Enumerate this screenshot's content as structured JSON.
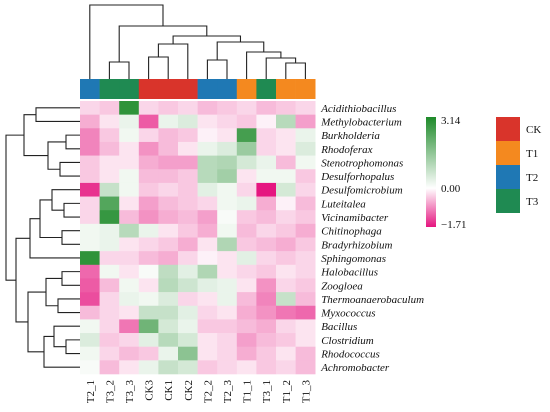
{
  "chart_data": {
    "type": "heatmap",
    "title": "",
    "columns": [
      "T2_1",
      "T3_2",
      "T3_3",
      "CK3",
      "CK1",
      "CK2",
      "T2_2",
      "T2_3",
      "T1_1",
      "T3_1",
      "T1_2",
      "T1_3"
    ],
    "column_groups": [
      "T2",
      "T3",
      "T3",
      "CK",
      "CK",
      "CK",
      "T2",
      "T2",
      "T1",
      "T3",
      "T1",
      "T1"
    ],
    "rows": [
      "Acidithiobacillus",
      "Methylobacterium",
      "Burkholderia",
      "Rhodoferax",
      "Stenotrophomonas",
      "Desulforhopalus",
      "Desulfomicrobium",
      "Luteitalea",
      "Vicinamibacter",
      "Chitinophaga",
      "Bradyrhizobium",
      "Sphingomonas",
      "Halobacillus",
      "Zoogloea",
      "Thermoanaerobaculum",
      "Myxococcus",
      "Bacillus",
      "Clostridium",
      "Rhodococcus",
      "Achromobacter"
    ],
    "values": [
      [
        -0.3,
        -0.4,
        2.9,
        -0.3,
        -0.4,
        -0.3,
        -0.5,
        -0.4,
        -0.3,
        -0.5,
        -0.4,
        -0.3
      ],
      [
        -0.6,
        -0.2,
        0.3,
        -1.2,
        0.3,
        0.5,
        -0.2,
        -0.3,
        -0.4,
        -0.1,
        1.0,
        -0.7
      ],
      [
        -0.9,
        -0.4,
        0.2,
        -0.3,
        -0.5,
        -0.4,
        -0.1,
        -0.2,
        2.6,
        -0.3,
        -0.2,
        0.3
      ],
      [
        -0.9,
        -0.5,
        -0.2,
        -0.8,
        -0.5,
        -0.2,
        0.3,
        0.5,
        1.4,
        -0.3,
        -0.2,
        0.5
      ],
      [
        -0.4,
        -0.2,
        -0.2,
        -0.6,
        -0.7,
        -0.7,
        1.0,
        1.1,
        0.6,
        0.3,
        -0.5,
        0.2
      ],
      [
        -0.4,
        -0.2,
        0.2,
        -0.5,
        -0.5,
        -0.4,
        1.0,
        1.3,
        -0.2,
        0.2,
        0.2,
        -0.4
      ],
      [
        -1.5,
        0.8,
        0.2,
        -0.4,
        -0.3,
        -0.4,
        0.4,
        0.2,
        -0.3,
        -1.7,
        0.6,
        -0.3
      ],
      [
        -0.3,
        2.4,
        -0.2,
        -0.7,
        -0.5,
        -0.4,
        -0.3,
        0.2,
        0.3,
        -0.6,
        -0.1,
        -0.5
      ],
      [
        -0.3,
        2.8,
        -0.5,
        -0.8,
        -0.6,
        -0.5,
        -0.7,
        0.1,
        -0.4,
        -0.5,
        -0.3,
        -0.4
      ],
      [
        0.2,
        0.3,
        1.0,
        0.3,
        -0.2,
        -0.4,
        -0.6,
        0.2,
        -0.5,
        -0.3,
        -0.4,
        -0.6
      ],
      [
        0.2,
        0.3,
        -0.2,
        -0.3,
        -0.4,
        -0.6,
        -0.2,
        1.1,
        -0.4,
        -0.5,
        -0.6,
        -0.4
      ],
      [
        2.9,
        -0.3,
        -0.3,
        -0.5,
        -0.6,
        -0.3,
        -0.1,
        -0.2,
        0.4,
        -0.3,
        -0.4,
        -0.3
      ],
      [
        -1.1,
        0.2,
        -0.2,
        0.1,
        0.9,
        0.4,
        1.1,
        -0.2,
        -0.3,
        -0.4,
        -0.2,
        -0.3
      ],
      [
        -1.2,
        -0.5,
        0.2,
        -0.2,
        1.0,
        0.7,
        0.4,
        0.3,
        -0.2,
        -0.8,
        -0.3,
        -0.4
      ],
      [
        -1.3,
        -0.3,
        0.3,
        0.2,
        0.5,
        -0.3,
        -0.2,
        0.3,
        -0.5,
        -0.9,
        0.8,
        -0.5
      ],
      [
        -0.5,
        -0.3,
        -0.2,
        0.8,
        0.8,
        0.4,
        -0.3,
        -0.2,
        -0.6,
        -0.8,
        -1.0,
        -1.1
      ],
      [
        0.2,
        -0.3,
        -1.0,
        2.0,
        0.6,
        0.3,
        -0.4,
        -0.4,
        -0.5,
        -0.6,
        -0.3,
        -0.2
      ],
      [
        0.5,
        -0.4,
        -0.3,
        0.4,
        1.0,
        0.6,
        -0.2,
        -0.3,
        -0.7,
        -0.5,
        -0.4,
        -0.2
      ],
      [
        0.2,
        -0.3,
        -0.5,
        -0.4,
        0.3,
        1.6,
        -0.2,
        -0.3,
        -0.6,
        -0.4,
        -0.2,
        -0.5
      ],
      [
        0.1,
        -0.5,
        -0.2,
        0.3,
        0.8,
        0.6,
        -0.4,
        -0.3,
        -0.2,
        -0.4,
        -0.3,
        -0.5
      ]
    ],
    "color_scale": {
      "min": -1.71,
      "mid": 0.0,
      "max": 3.14,
      "colors": [
        "#e5157f",
        "#ffffff",
        "#1e8a2a"
      ],
      "tick_labels": [
        "3.14",
        "0.00",
        "−1.71"
      ]
    },
    "group_legend": [
      {
        "label": "CK",
        "color": "#d9342b"
      },
      {
        "label": "T1",
        "color": "#f4891f"
      },
      {
        "label": "T2",
        "color": "#1f78b4"
      },
      {
        "label": "T3",
        "color": "#1f8a52"
      }
    ],
    "row_dendrogram": true,
    "column_dendrogram": true,
    "legend_placement": "right"
  }
}
